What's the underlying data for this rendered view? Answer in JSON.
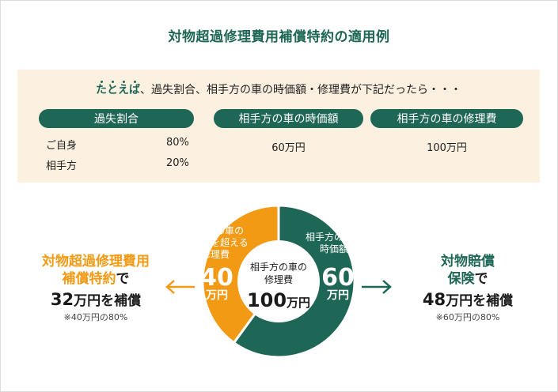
{
  "title": "対物超過修理費用補償特約の適用例",
  "intro": {
    "emphasis": "たとえば",
    "text": "、過失割合、相手方の車の時価額・修理費が下記だったら・・・"
  },
  "table": {
    "headers": [
      "過失割合",
      "相手方の車の時価額",
      "相手方の車の修理費"
    ],
    "fault_rows": [
      {
        "party": "ご自身",
        "ratio": "80%"
      },
      {
        "party": "相手方",
        "ratio": "20%"
      }
    ],
    "market_value": "60万円",
    "repair_cost": "100万円"
  },
  "chart_data": {
    "type": "pie",
    "center_label": [
      "相手方の車の",
      "修理費"
    ],
    "center_value": "100",
    "center_unit": "万円",
    "total": 100,
    "slices": [
      {
        "label": [
          "相手方の車の",
          "時価額"
        ],
        "value": 60,
        "value_text": "60",
        "unit": "万円",
        "color": "#1e6655"
      },
      {
        "label": [
          "相手方の車の",
          "時価額を超える",
          "修理費"
        ],
        "value": 40,
        "value_text": "40",
        "unit": "万円",
        "color": "#f39a14"
      }
    ]
  },
  "left": {
    "title_line1": "対物超過修理費用",
    "title_line2_colored": "補償特約",
    "title_line2_plain": "で",
    "amount": "32",
    "amount_unit": "万円を補償",
    "note": "※40万円の80%"
  },
  "right": {
    "title_line1": "対物賠償",
    "title_line2_colored": "保険",
    "title_line2_plain": "で",
    "amount": "48",
    "amount_unit": "万円を補償",
    "note": "※60万円の80%"
  },
  "colors": {
    "green": "#1e6655",
    "orange": "#f39a14",
    "panel": "#fcf1e0"
  }
}
